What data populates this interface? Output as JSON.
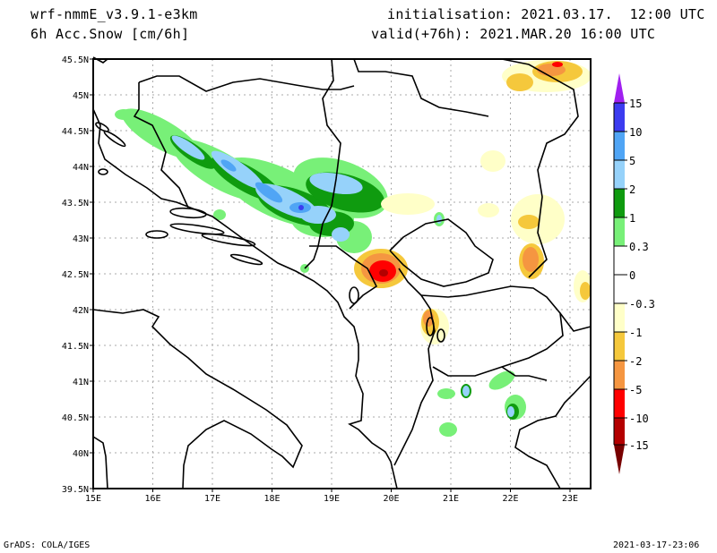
{
  "header": {
    "model": "wrf-nmmE_v3.9.1-e3km",
    "field": "6h Acc.Snow [cm/6h]",
    "init": "initialisation: 2021.03.17.  12:00 UTC",
    "valid": "valid(+76h): 2021.MAR.20 16:00 UTC"
  },
  "footer": {
    "left": "GrADS: COLA/IGES",
    "right": "2021-03-17-23:06"
  },
  "axes": {
    "lon_labels": [
      "15E",
      "16E",
      "17E",
      "18E",
      "19E",
      "20E",
      "21E",
      "22E",
      "23E"
    ],
    "lat_labels": [
      "45.5N",
      "45N",
      "44.5N",
      "44N",
      "43.5N",
      "43N",
      "42.5N",
      "42N",
      "41.5N",
      "41N",
      "40.5N",
      "40N",
      "39.5N"
    ]
  },
  "colorbar": {
    "labels": [
      "15",
      "10",
      "5",
      "2",
      "1",
      "0.3",
      "0",
      "-0.3",
      "-1",
      "-2",
      "-5",
      "-10",
      "-15"
    ],
    "colors": {
      "over": "#a020f0",
      "c15_10": "#3c3cf0",
      "c10_5": "#50a5f5",
      "c5_2": "#96d2fa",
      "c2_1": "#0f9b0f",
      "c1_03": "#78f078",
      "c03_m03": "#ffffff",
      "cm03_m1": "#ffffc8",
      "cm1_m2": "#f5c83c",
      "cm2_m5": "#f59641",
      "cm5_m10": "#ff0000",
      "cm10_m15": "#b40000",
      "under": "#780000"
    }
  }
}
